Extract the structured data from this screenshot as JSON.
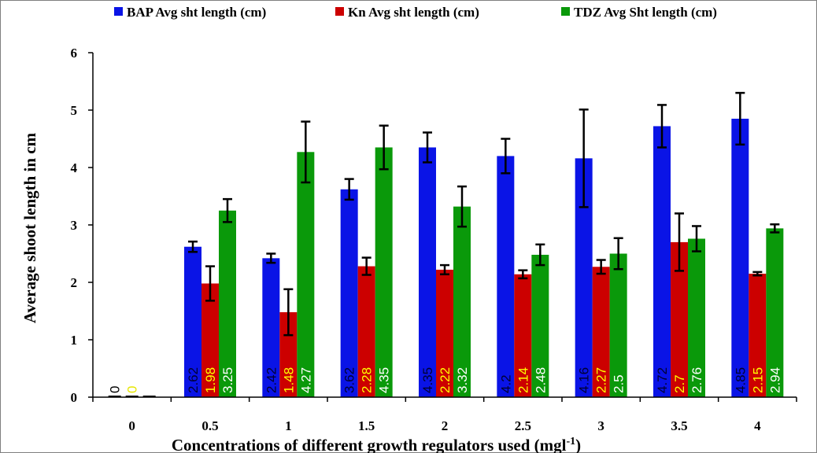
{
  "chart_data": {
    "type": "bar",
    "title": "",
    "xlabel": "Concentrations of different growth regulators used (mgl",
    "xlabel_superscript": "-1",
    "xlabel_suffix": ")",
    "ylabel": "Average shoot length in cm",
    "ylim": [
      0,
      6
    ],
    "yticks": [
      "0",
      "1",
      "2",
      "3",
      "4",
      "5",
      "6"
    ],
    "categories": [
      "0",
      "0.5",
      "1",
      "1.5",
      "2",
      "2.5",
      "3",
      "3.5",
      "4"
    ],
    "legend_position": "top",
    "grid": false,
    "series": [
      {
        "name": "BAP Avg sht length (cm)",
        "color": "#0a14e6",
        "label_color": "#000033",
        "values": [
          0,
          2.62,
          2.42,
          3.62,
          4.35,
          4.2,
          4.16,
          4.72,
          4.85
        ],
        "labels": [
          "0",
          "2.62",
          "2.42",
          "3.62",
          "4.35",
          "4.2",
          "4.16",
          "4.72",
          "4.85"
        ],
        "errors": [
          0,
          0.09,
          0.08,
          0.18,
          0.26,
          0.3,
          0.85,
          0.37,
          0.45
        ]
      },
      {
        "name": "Kn Avg sht length (cm)",
        "color": "#cc0000",
        "label_color": "#ffff00",
        "values": [
          0,
          1.98,
          1.48,
          2.28,
          2.22,
          2.14,
          2.27,
          2.7,
          2.15
        ],
        "labels": [
          "0",
          "1.98",
          "1.48",
          "2.28",
          "2.22",
          "2.14",
          "2.27",
          "2.7",
          "2.15"
        ],
        "errors": [
          0,
          0.3,
          0.4,
          0.15,
          0.08,
          0.07,
          0.12,
          0.5,
          0.03
        ]
      },
      {
        "name": "TDZ Avg Sht length (cm)",
        "color": "#0a990a",
        "label_color": "#ffffff",
        "values": [
          0,
          3.25,
          4.27,
          4.35,
          3.32,
          2.48,
          2.5,
          2.76,
          2.94
        ],
        "labels": [
          "",
          "3.25",
          "4.27",
          "4.35",
          "3.32",
          "2.48",
          "2.5",
          "2.76",
          "2.94"
        ],
        "errors": [
          0,
          0.2,
          0.53,
          0.38,
          0.35,
          0.18,
          0.27,
          0.22,
          0.07
        ]
      }
    ]
  }
}
